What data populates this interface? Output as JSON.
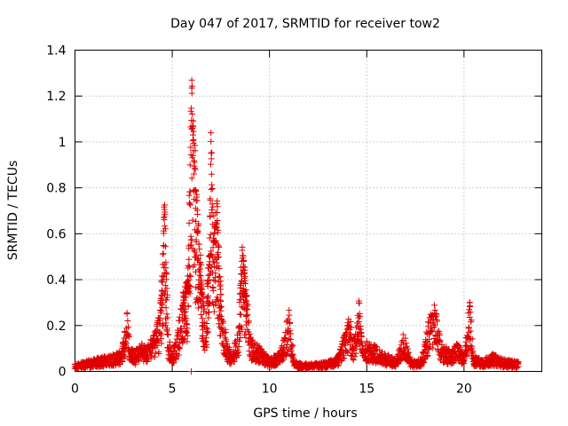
{
  "chart_data": {
    "type": "scatter",
    "title": "Day 047 of 2017, SRMTID for receiver tow2",
    "xlabel": "GPS time / hours",
    "ylabel": "SRMTID / TECUs",
    "xlim": [
      0,
      24
    ],
    "ylim": [
      0,
      1.4
    ],
    "xticks": [
      0,
      5,
      10,
      15,
      20
    ],
    "yticks": [
      0,
      0.2,
      0.4,
      0.6,
      0.8,
      1,
      1.2,
      1.4
    ],
    "xtick_labels": [
      "0",
      "5",
      "10",
      "15",
      "20"
    ],
    "ytick_labels": [
      "0",
      "0.2",
      "0.4",
      "0.6",
      "0.8",
      "1",
      "1.2",
      "1.4"
    ],
    "grid": true,
    "marker": "+",
    "marker_color": "#e00000",
    "x_end": 22.8,
    "series": [
      {
        "name": "SRMTID",
        "profile": [
          [
            0.0,
            0.03
          ],
          [
            0.5,
            0.04
          ],
          [
            1.0,
            0.05
          ],
          [
            1.5,
            0.06
          ],
          [
            2.0,
            0.07
          ],
          [
            2.4,
            0.09
          ],
          [
            2.6,
            0.18
          ],
          [
            2.7,
            0.26
          ],
          [
            2.8,
            0.12
          ],
          [
            3.1,
            0.08
          ],
          [
            3.4,
            0.12
          ],
          [
            3.7,
            0.1
          ],
          [
            4.0,
            0.14
          ],
          [
            4.3,
            0.22
          ],
          [
            4.5,
            0.4
          ],
          [
            4.6,
            0.75
          ],
          [
            4.7,
            0.45
          ],
          [
            4.8,
            0.15
          ],
          [
            5.0,
            0.08
          ],
          [
            5.3,
            0.18
          ],
          [
            5.5,
            0.3
          ],
          [
            5.8,
            0.38
          ],
          [
            6.0,
            1.28
          ],
          [
            6.1,
            1.0
          ],
          [
            6.3,
            0.7
          ],
          [
            6.5,
            0.4
          ],
          [
            6.7,
            0.2
          ],
          [
            6.9,
            0.5
          ],
          [
            7.0,
            1.06
          ],
          [
            7.1,
            0.6
          ],
          [
            7.3,
            0.7
          ],
          [
            7.5,
            0.32
          ],
          [
            7.8,
            0.12
          ],
          [
            8.1,
            0.07
          ],
          [
            8.4,
            0.18
          ],
          [
            8.6,
            0.54
          ],
          [
            8.8,
            0.36
          ],
          [
            9.0,
            0.14
          ],
          [
            9.5,
            0.1
          ],
          [
            10.0,
            0.05
          ],
          [
            10.5,
            0.08
          ],
          [
            10.8,
            0.16
          ],
          [
            11.0,
            0.25
          ],
          [
            11.3,
            0.04
          ],
          [
            12.0,
            0.03
          ],
          [
            13.0,
            0.04
          ],
          [
            13.5,
            0.06
          ],
          [
            13.9,
            0.16
          ],
          [
            14.1,
            0.23
          ],
          [
            14.3,
            0.12
          ],
          [
            14.6,
            0.31
          ],
          [
            14.8,
            0.1
          ],
          [
            15.0,
            0.12
          ],
          [
            15.5,
            0.1
          ],
          [
            16.0,
            0.07
          ],
          [
            16.5,
            0.05
          ],
          [
            16.9,
            0.16
          ],
          [
            17.3,
            0.04
          ],
          [
            17.8,
            0.05
          ],
          [
            18.2,
            0.22
          ],
          [
            18.5,
            0.27
          ],
          [
            18.8,
            0.12
          ],
          [
            19.3,
            0.08
          ],
          [
            19.7,
            0.12
          ],
          [
            20.0,
            0.06
          ],
          [
            20.3,
            0.31
          ],
          [
            20.5,
            0.06
          ],
          [
            21.0,
            0.05
          ],
          [
            21.5,
            0.07
          ],
          [
            22.0,
            0.05
          ],
          [
            22.8,
            0.04
          ]
        ]
      }
    ]
  }
}
